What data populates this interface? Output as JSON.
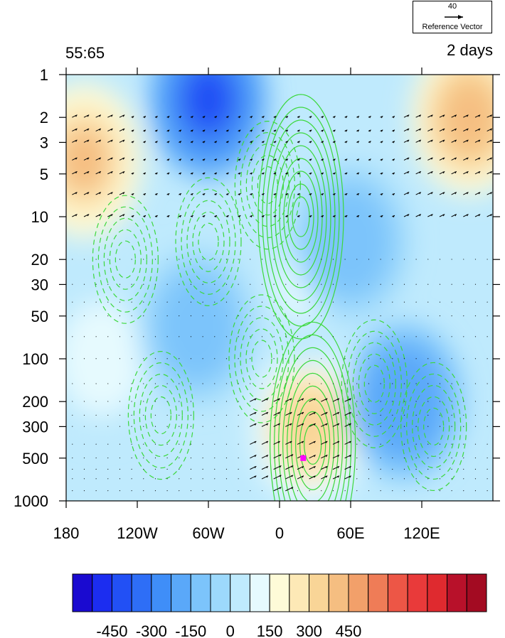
{
  "chart_data": {
    "type": "heatmap",
    "title_left": "55:65",
    "title_right": "2 days",
    "reference_vector": {
      "magnitude": "40",
      "label": "Reference Vector"
    },
    "x_axis": {
      "range": [
        -180,
        180
      ],
      "ticks": [
        {
          "value": -180,
          "label": "180"
        },
        {
          "value": -120,
          "label": "120W"
        },
        {
          "value": -60,
          "label": "60W"
        },
        {
          "value": 0,
          "label": "0"
        },
        {
          "value": 60,
          "label": "60E"
        },
        {
          "value": 120,
          "label": "120E"
        }
      ]
    },
    "y_axis": {
      "scale": "log",
      "reversed": true,
      "range": [
        1,
        1000
      ],
      "ticks": [
        {
          "value": 1,
          "label": "1"
        },
        {
          "value": 2,
          "label": "2"
        },
        {
          "value": 3,
          "label": "3"
        },
        {
          "value": 5,
          "label": "5"
        },
        {
          "value": 10,
          "label": "10"
        },
        {
          "value": 20,
          "label": "20"
        },
        {
          "value": 30,
          "label": "30"
        },
        {
          "value": 50,
          "label": "50"
        },
        {
          "value": 100,
          "label": "100"
        },
        {
          "value": 200,
          "label": "200"
        },
        {
          "value": 300,
          "label": "300"
        },
        {
          "value": 500,
          "label": "500"
        },
        {
          "value": 1000,
          "label": "1000"
        }
      ]
    },
    "colorbar": {
      "levels": [
        -525,
        -450,
        -375,
        -300,
        -225,
        -150,
        -75,
        0,
        75,
        150,
        225,
        300,
        375,
        450,
        525
      ],
      "labels": [
        {
          "value": -450,
          "label": "-450"
        },
        {
          "value": -300,
          "label": "-300"
        },
        {
          "value": -150,
          "label": "-150"
        },
        {
          "value": 0,
          "label": "0"
        },
        {
          "value": 150,
          "label": "150"
        },
        {
          "value": 300,
          "label": "300"
        },
        {
          "value": 450,
          "label": "450"
        }
      ],
      "colors": [
        "#1a0ad0",
        "#1c2df0",
        "#2250f5",
        "#2e6ef6",
        "#3f8ef8",
        "#5aa8f9",
        "#7cc4fb",
        "#9dd9fc",
        "#bfeafd",
        "#e6fafe",
        "#fefbd8",
        "#fde9b6",
        "#f9d597",
        "#f5be81",
        "#f2a06a",
        "#ef7c57",
        "#ed5646",
        "#e93a3a",
        "#df2a2f",
        "#b8112a",
        "#a30b22"
      ]
    },
    "field_features": [
      {
        "kind": "max",
        "lon": -165,
        "p": 4,
        "value": 500
      },
      {
        "kind": "min",
        "lon": -60,
        "p": 1.5,
        "value": -450
      },
      {
        "kind": "max",
        "lon": 160,
        "p": 2,
        "value": 525
      },
      {
        "kind": "max",
        "lon": 25,
        "p": 300,
        "value": 400
      },
      {
        "kind": "min",
        "lon": 105,
        "p": 200,
        "value": -250
      },
      {
        "kind": "max",
        "lon": 20,
        "p": 30,
        "value": 120
      },
      {
        "kind": "min",
        "lon": 60,
        "p": 15,
        "value": -150
      },
      {
        "kind": "max",
        "lon": -150,
        "p": 100,
        "value": 150
      },
      {
        "kind": "min",
        "lon": -70,
        "p": 60,
        "value": -150
      }
    ],
    "contour_centers": [
      {
        "sign": "positive",
        "lon": 18,
        "p": 10
      },
      {
        "sign": "positive",
        "lon": 28,
        "p": 400
      },
      {
        "sign": "negative",
        "lon": -15,
        "p": 100
      },
      {
        "sign": "negative",
        "lon": 80,
        "p": 150
      },
      {
        "sign": "negative",
        "lon": -100,
        "p": 250
      },
      {
        "sign": "negative",
        "lon": 130,
        "p": 300
      },
      {
        "sign": "negative",
        "lon": -130,
        "p": 20
      },
      {
        "sign": "negative",
        "lon": -60,
        "p": 15
      },
      {
        "sign": "negative",
        "lon": -10,
        "p": 6
      }
    ],
    "vectors_note": "wind vectors on grid; strongest near 0-60E at 200-700 hPa and high-latitude stratosphere",
    "marker": {
      "lon": 20,
      "p": 500,
      "color": "#ff00ff"
    }
  }
}
